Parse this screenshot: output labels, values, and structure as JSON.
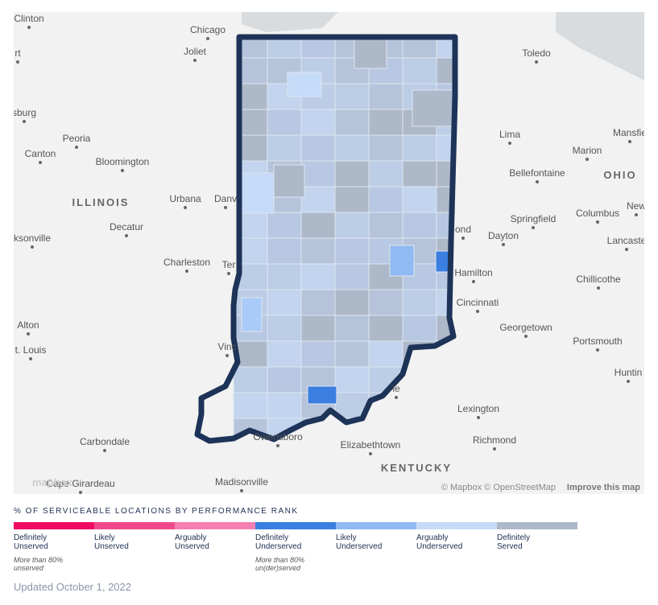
{
  "map": {
    "places": [
      "Chicago",
      "Joliet",
      "Toledo",
      "Peoria",
      "Canton",
      "Bloomington",
      "ILLINOIS",
      "Urbana",
      "Danv",
      "Decatur",
      "ksonville",
      "Charleston",
      "Ter",
      "Alton",
      "t. Louis",
      "Vinc",
      "Carbondale",
      "Cape Girardeau",
      "Madisonville",
      "Owensboro",
      "Elizabethtown",
      "KENTUCKY",
      "Lexington",
      "Richmond",
      "Cincinnati",
      "Hamilton",
      "Dayton",
      "Springfield",
      "Columbus",
      "Bellefontaine",
      "Marion",
      "Mansfie",
      "OHIO",
      "Lima",
      "Georgetown",
      "Portsmouth",
      "Huntin",
      "Chillicothe",
      "Lancaste",
      "New",
      "rt",
      "sburg",
      "Clinton",
      "ond",
      "le"
    ],
    "logo": "mapbox",
    "attribution": "© Mapbox © OpenStreetMap",
    "improve": "Improve this map"
  },
  "legend": {
    "title": "% OF SERVICEABLE LOCATIONS BY PERFORMANCE RANK",
    "items": [
      {
        "label": "Definitely Unserved",
        "color": "#ee0d63",
        "note": "More than 80% unserved"
      },
      {
        "label": "Likely Unserved",
        "color": "#f04a8a"
      },
      {
        "label": "Arguably Unserved",
        "color": "#f47fb0"
      },
      {
        "label": "Definitely Underserved",
        "color": "#3a7fe0",
        "note": "More than 80% un(der)served"
      },
      {
        "label": "Likely Underserved",
        "color": "#8fbaf2"
      },
      {
        "label": "Arguably Underserved",
        "color": "#c6dbf8"
      },
      {
        "label": "Definitely Served",
        "color": "#adb8c9"
      }
    ]
  },
  "footer": {
    "updated": "Updated October 1, 2022"
  }
}
